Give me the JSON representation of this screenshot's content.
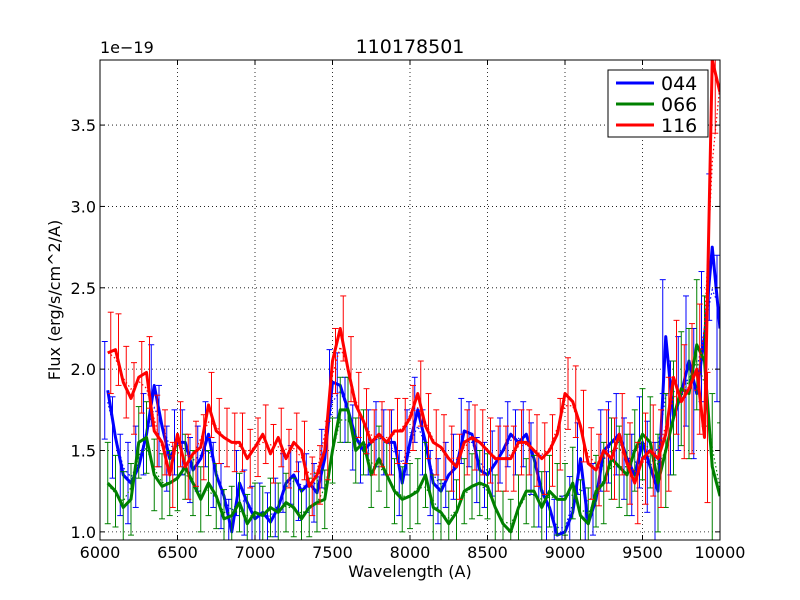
{
  "chart_data": {
    "type": "line",
    "title": "110178501",
    "xlabel": "Wavelength (A)",
    "ylabel": "Flux (erg/s/cm^2/A)",
    "y_offset_text": "1e−19",
    "xlim": [
      6000,
      10000
    ],
    "ylim": [
      0.95,
      3.9
    ],
    "xticks": [
      6000,
      6500,
      7000,
      7500,
      8000,
      8500,
      9000,
      9500,
      10000
    ],
    "yticks": [
      1.0,
      1.5,
      2.0,
      2.5,
      3.0,
      3.5
    ],
    "ytick_labels": [
      "1.0",
      "1.5",
      "2.0",
      "2.5",
      "3.0",
      "3.5"
    ],
    "grid": true,
    "legend_position": "top-right",
    "series": [
      {
        "name": "044",
        "color": "#0000ff",
        "x": [
          6050,
          6100,
          6150,
          6200,
          6250,
          6300,
          6350,
          6400,
          6450,
          6500,
          6550,
          6600,
          6650,
          6700,
          6750,
          6800,
          6850,
          6900,
          6950,
          7000,
          7050,
          7100,
          7150,
          7200,
          7250,
          7300,
          7350,
          7400,
          7450,
          7500,
          7550,
          7600,
          7650,
          7700,
          7750,
          7800,
          7850,
          7900,
          7950,
          8000,
          8050,
          8100,
          8150,
          8200,
          8250,
          8300,
          8350,
          8400,
          8450,
          8500,
          8550,
          8600,
          8650,
          8700,
          8750,
          8800,
          8850,
          8900,
          8950,
          9000,
          9050,
          9100,
          9150,
          9200,
          9250,
          9300,
          9350,
          9400,
          9450,
          9500,
          9550,
          9600,
          9650,
          9700,
          9750,
          9800,
          9850,
          9900,
          9950,
          10000
        ],
        "y": [
          1.87,
          1.58,
          1.35,
          1.3,
          1.4,
          1.6,
          1.9,
          1.65,
          1.45,
          1.55,
          1.55,
          1.38,
          1.45,
          1.6,
          1.35,
          1.22,
          1.0,
          1.3,
          1.18,
          1.08,
          1.12,
          1.06,
          1.15,
          1.3,
          1.35,
          1.25,
          1.3,
          1.24,
          1.45,
          1.92,
          1.9,
          1.75,
          1.58,
          1.5,
          1.55,
          1.6,
          1.55,
          1.55,
          1.3,
          1.55,
          1.75,
          1.55,
          1.3,
          1.25,
          1.35,
          1.4,
          1.62,
          1.6,
          1.38,
          1.35,
          1.42,
          1.5,
          1.6,
          1.55,
          1.6,
          1.45,
          1.25,
          1.15,
          0.98,
          1.0,
          1.12,
          1.45,
          1.05,
          1.2,
          1.5,
          1.55,
          1.6,
          1.45,
          1.35,
          1.55,
          1.4,
          1.25,
          2.2,
          1.7,
          1.85,
          2.05,
          1.85,
          2.2,
          2.75,
          2.25
        ],
        "err": [
          0.3,
          0.25,
          0.25,
          0.25,
          0.25,
          0.25,
          0.25,
          0.25,
          0.2,
          0.2,
          0.2,
          0.2,
          0.2,
          0.2,
          0.2,
          0.2,
          0.2,
          0.2,
          0.2,
          0.2,
          0.18,
          0.18,
          0.18,
          0.18,
          0.18,
          0.18,
          0.18,
          0.18,
          0.18,
          0.2,
          0.2,
          0.2,
          0.2,
          0.2,
          0.2,
          0.2,
          0.2,
          0.2,
          0.2,
          0.2,
          0.2,
          0.2,
          0.2,
          0.2,
          0.2,
          0.2,
          0.2,
          0.2,
          0.2,
          0.2,
          0.2,
          0.2,
          0.2,
          0.2,
          0.2,
          0.22,
          0.22,
          0.22,
          0.22,
          0.22,
          0.22,
          0.22,
          0.22,
          0.22,
          0.25,
          0.25,
          0.25,
          0.25,
          0.25,
          0.28,
          0.28,
          0.3,
          0.35,
          0.35,
          0.35,
          0.4,
          0.4,
          0.4,
          0.45,
          0.45
        ]
      },
      {
        "name": "066",
        "color": "#008000",
        "x": [
          6050,
          6100,
          6150,
          6200,
          6250,
          6300,
          6350,
          6400,
          6450,
          6500,
          6550,
          6600,
          6650,
          6700,
          6750,
          6800,
          6850,
          6900,
          6950,
          7000,
          7050,
          7100,
          7150,
          7200,
          7250,
          7300,
          7350,
          7400,
          7450,
          7500,
          7550,
          7600,
          7650,
          7700,
          7750,
          7800,
          7850,
          7900,
          7950,
          8000,
          8050,
          8100,
          8150,
          8200,
          8250,
          8300,
          8350,
          8400,
          8450,
          8500,
          8550,
          8600,
          8650,
          8700,
          8750,
          8800,
          8850,
          8900,
          8950,
          9000,
          9050,
          9100,
          9150,
          9200,
          9250,
          9300,
          9350,
          9400,
          9450,
          9500,
          9550,
          9600,
          9650,
          9700,
          9750,
          9800,
          9850,
          9900,
          9950,
          10000
        ],
        "y": [
          1.3,
          1.25,
          1.15,
          1.2,
          1.55,
          1.58,
          1.35,
          1.28,
          1.3,
          1.33,
          1.4,
          1.3,
          1.2,
          1.3,
          1.22,
          1.08,
          1.1,
          1.18,
          1.05,
          1.12,
          1.1,
          1.15,
          1.12,
          1.18,
          1.15,
          1.08,
          1.15,
          1.18,
          1.2,
          1.5,
          1.75,
          1.75,
          1.5,
          1.55,
          1.35,
          1.45,
          1.35,
          1.25,
          1.2,
          1.22,
          1.25,
          1.35,
          1.15,
          1.12,
          1.05,
          1.12,
          1.25,
          1.28,
          1.3,
          1.28,
          1.15,
          1.05,
          1.0,
          1.15,
          1.25,
          1.25,
          1.15,
          1.25,
          1.2,
          1.2,
          1.3,
          1.1,
          1.05,
          1.25,
          1.3,
          1.45,
          1.4,
          1.35,
          1.5,
          1.6,
          1.55,
          1.3,
          1.5,
          1.7,
          1.88,
          1.85,
          2.15,
          2.05,
          1.4,
          1.22
        ],
        "err": [
          0.25,
          0.22,
          0.22,
          0.22,
          0.22,
          0.22,
          0.22,
          0.2,
          0.2,
          0.2,
          0.2,
          0.2,
          0.2,
          0.2,
          0.2,
          0.18,
          0.18,
          0.18,
          0.18,
          0.18,
          0.18,
          0.18,
          0.18,
          0.18,
          0.18,
          0.18,
          0.18,
          0.18,
          0.18,
          0.2,
          0.2,
          0.2,
          0.2,
          0.2,
          0.2,
          0.2,
          0.2,
          0.2,
          0.2,
          0.2,
          0.2,
          0.2,
          0.2,
          0.2,
          0.2,
          0.2,
          0.2,
          0.2,
          0.2,
          0.2,
          0.2,
          0.2,
          0.2,
          0.2,
          0.2,
          0.22,
          0.22,
          0.22,
          0.22,
          0.22,
          0.22,
          0.22,
          0.22,
          0.22,
          0.25,
          0.25,
          0.25,
          0.25,
          0.25,
          0.28,
          0.28,
          0.3,
          0.35,
          0.35,
          0.35,
          0.4,
          0.4,
          0.4,
          0.45,
          0.45
        ]
      },
      {
        "name": "116",
        "color": "#ff0000",
        "x": [
          6050,
          6100,
          6150,
          6200,
          6250,
          6300,
          6350,
          6400,
          6450,
          6500,
          6550,
          6600,
          6650,
          6700,
          6750,
          6800,
          6850,
          6900,
          6950,
          7000,
          7050,
          7100,
          7150,
          7200,
          7250,
          7300,
          7350,
          7400,
          7450,
          7500,
          7550,
          7600,
          7650,
          7700,
          7750,
          7800,
          7850,
          7900,
          7950,
          8000,
          8050,
          8100,
          8150,
          8200,
          8250,
          8300,
          8350,
          8400,
          8450,
          8500,
          8550,
          8600,
          8650,
          8700,
          8750,
          8800,
          8850,
          8900,
          8950,
          9000,
          9050,
          9100,
          9150,
          9200,
          9250,
          9300,
          9350,
          9400,
          9450,
          9500,
          9550,
          9600,
          9650,
          9700,
          9750,
          9800,
          9850,
          9900,
          9950,
          10000
        ],
        "y": [
          2.1,
          2.12,
          1.92,
          1.82,
          1.95,
          1.98,
          1.62,
          1.55,
          1.35,
          1.6,
          1.4,
          1.48,
          1.52,
          1.78,
          1.62,
          1.58,
          1.55,
          1.55,
          1.45,
          1.52,
          1.6,
          1.48,
          1.58,
          1.45,
          1.55,
          1.5,
          1.28,
          1.35,
          1.5,
          2.05,
          2.25,
          2.0,
          1.78,
          1.68,
          1.55,
          1.6,
          1.55,
          1.62,
          1.62,
          1.7,
          1.85,
          1.65,
          1.55,
          1.52,
          1.45,
          1.4,
          1.55,
          1.58,
          1.55,
          1.5,
          1.45,
          1.45,
          1.45,
          1.55,
          1.55,
          1.5,
          1.45,
          1.5,
          1.6,
          1.85,
          1.8,
          1.65,
          1.42,
          1.38,
          1.5,
          1.45,
          1.6,
          1.42,
          1.3,
          1.45,
          1.5,
          1.45,
          1.6,
          1.95,
          1.8,
          1.88,
          2.0,
          1.58,
          3.9,
          3.7
        ],
        "err": [
          0.25,
          0.22,
          0.22,
          0.22,
          0.22,
          0.22,
          0.22,
          0.2,
          0.2,
          0.2,
          0.2,
          0.2,
          0.2,
          0.2,
          0.2,
          0.18,
          0.18,
          0.18,
          0.18,
          0.18,
          0.18,
          0.18,
          0.18,
          0.18,
          0.18,
          0.18,
          0.18,
          0.18,
          0.18,
          0.2,
          0.2,
          0.2,
          0.2,
          0.2,
          0.2,
          0.2,
          0.2,
          0.2,
          0.2,
          0.2,
          0.2,
          0.2,
          0.2,
          0.2,
          0.2,
          0.2,
          0.2,
          0.2,
          0.2,
          0.2,
          0.2,
          0.2,
          0.2,
          0.2,
          0.2,
          0.22,
          0.22,
          0.22,
          0.22,
          0.22,
          0.22,
          0.22,
          0.22,
          0.22,
          0.25,
          0.25,
          0.25,
          0.25,
          0.25,
          0.28,
          0.28,
          0.3,
          0.35,
          0.35,
          0.35,
          0.4,
          0.4,
          0.4,
          0.45,
          0.45
        ]
      }
    ]
  }
}
